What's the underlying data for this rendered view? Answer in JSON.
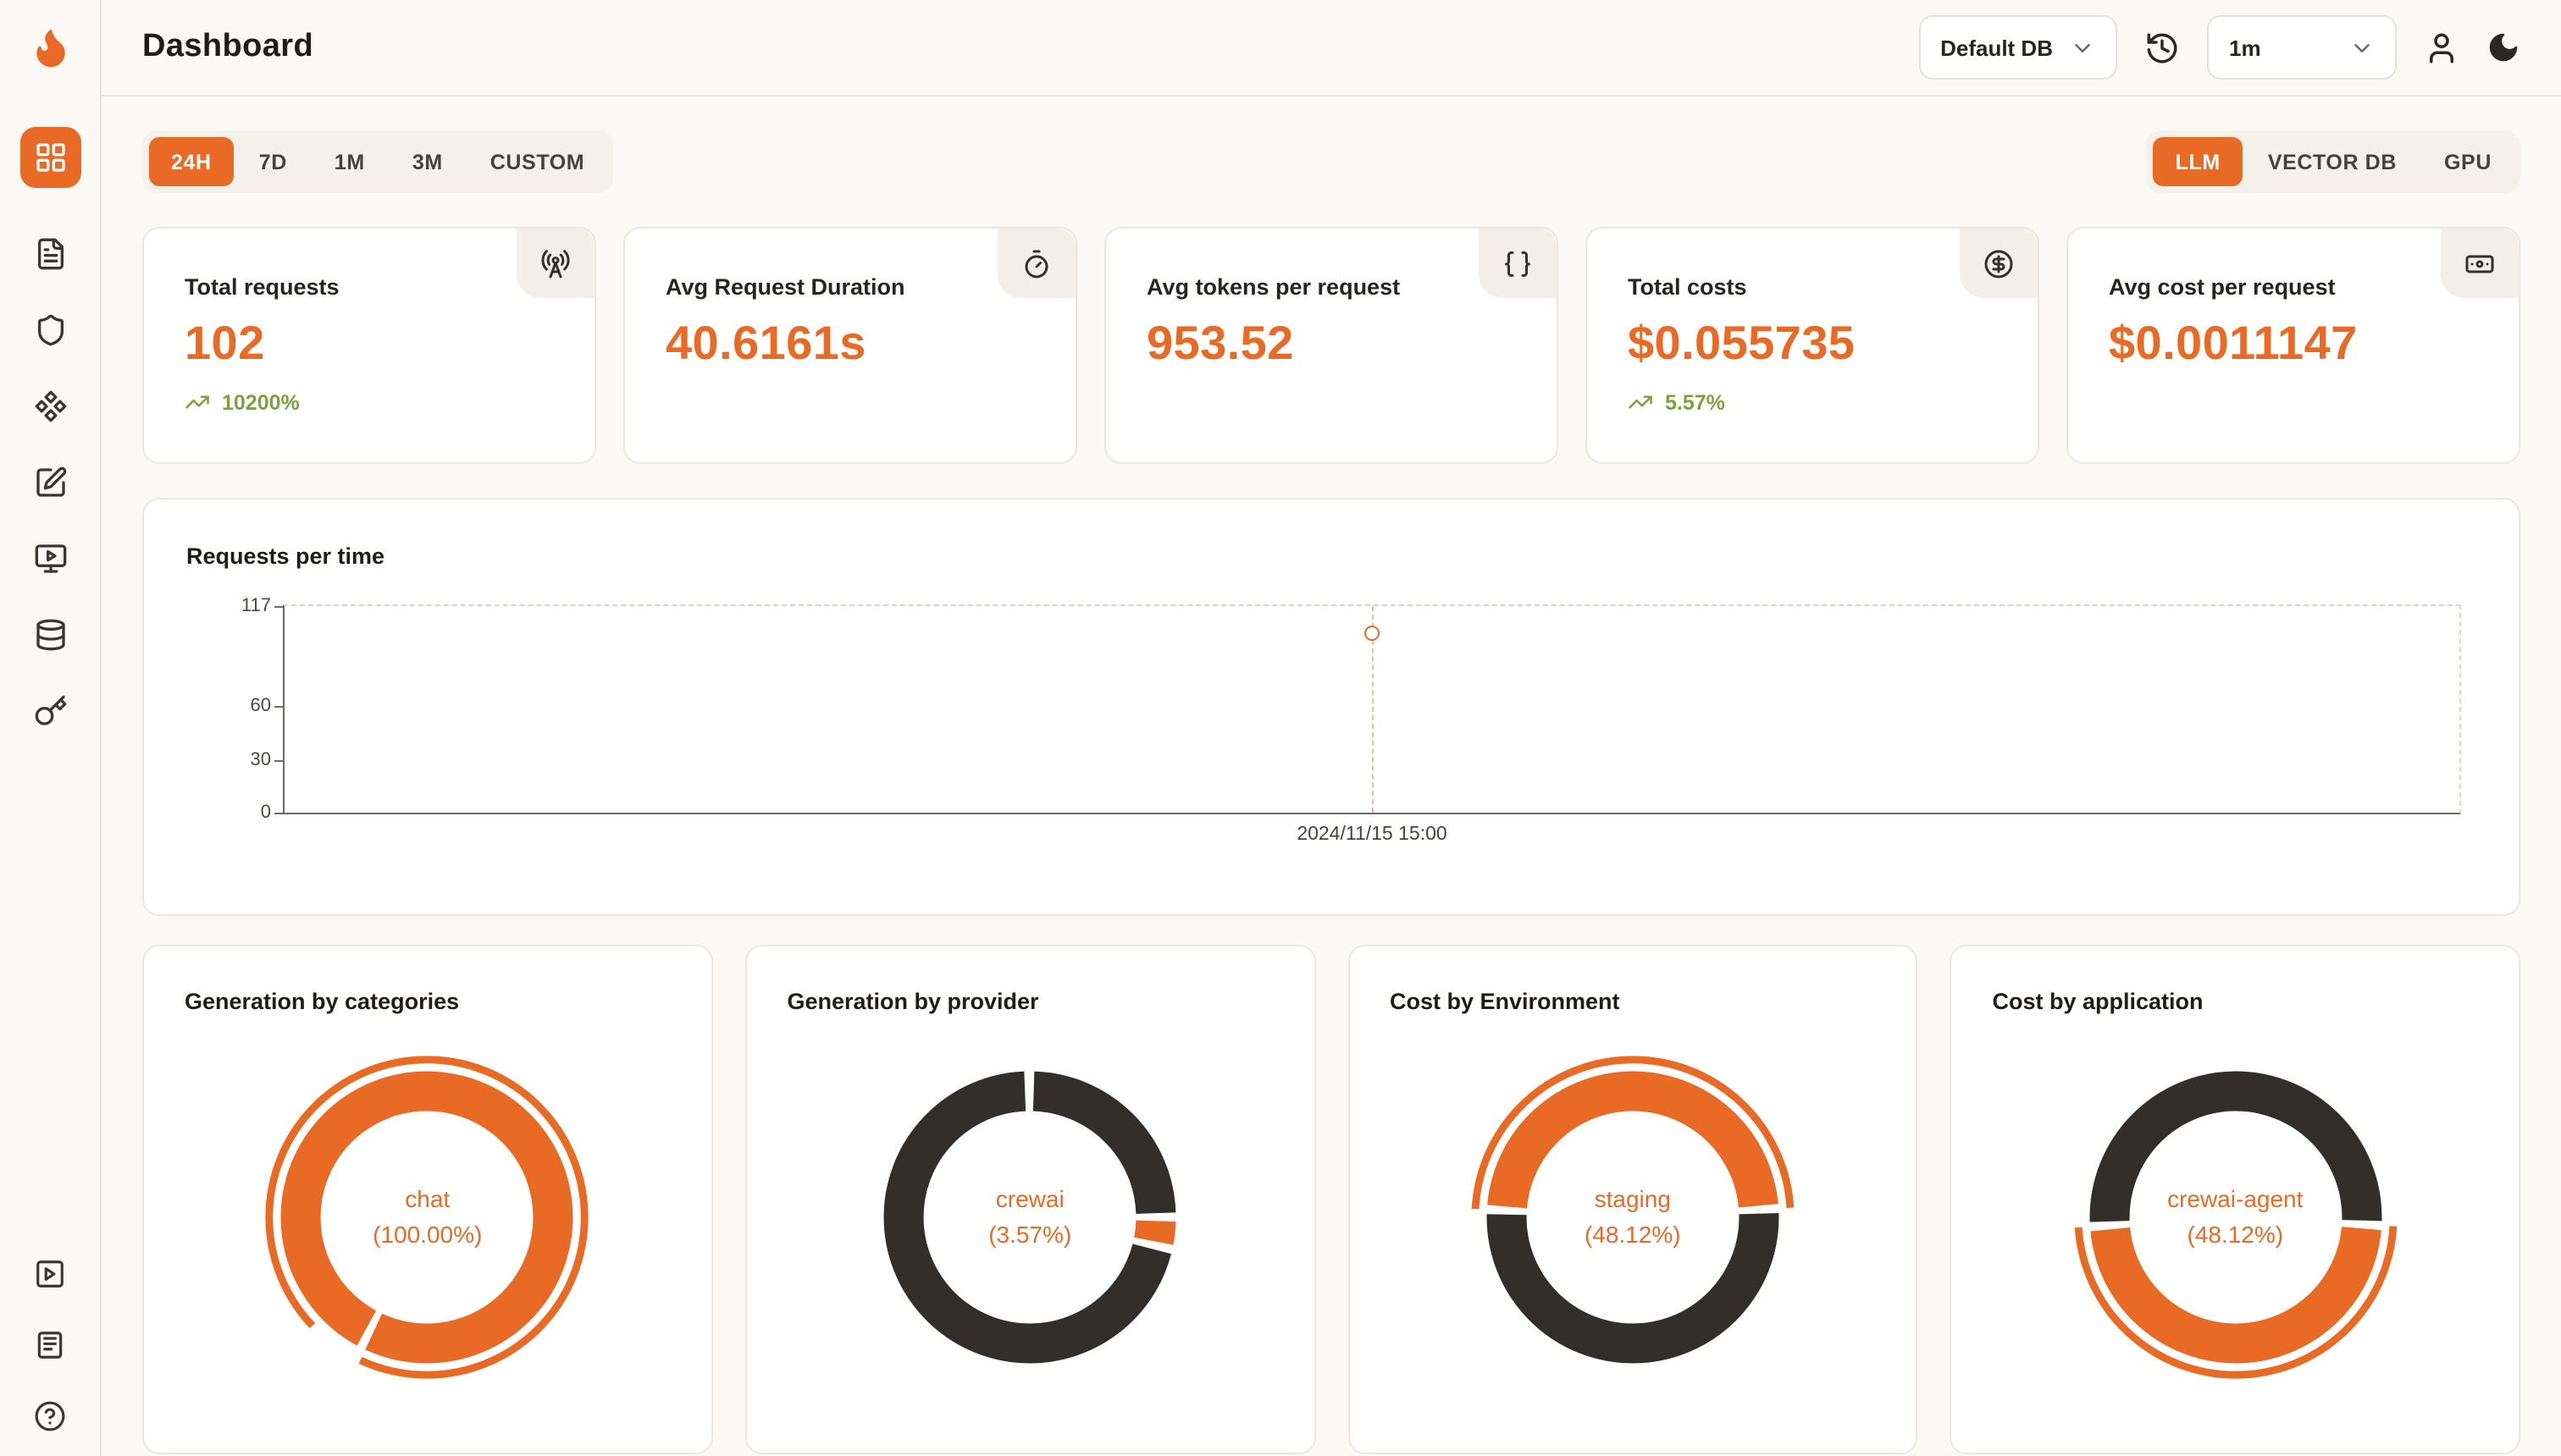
{
  "colors": {
    "accent": "#E86A24",
    "dark": "#322E29",
    "positive": "#7FA03F"
  },
  "header": {
    "title": "Dashboard",
    "db_select": {
      "value": "Default DB"
    },
    "interval_select": {
      "value": "1m"
    }
  },
  "sidebar": {
    "items": [
      "dashboard",
      "requests",
      "exceptions",
      "prompt-hub",
      "evaluations",
      "playground",
      "databases",
      "api-keys"
    ],
    "footer_items": [
      "getting-started",
      "documentation",
      "help"
    ]
  },
  "filters": {
    "time_ranges": [
      "24H",
      "7D",
      "1M",
      "3M",
      "CUSTOM"
    ],
    "active_time_range": "24H",
    "modes": [
      "LLM",
      "VECTOR DB",
      "GPU"
    ],
    "active_mode": "LLM"
  },
  "stats": [
    {
      "label": "Total requests",
      "value": "102",
      "delta": "10200%",
      "icon": "radio-tower"
    },
    {
      "label": "Avg Request Duration",
      "value": "40.6161s",
      "icon": "timer"
    },
    {
      "label": "Avg tokens per request",
      "value": "953.52",
      "icon": "braces"
    },
    {
      "label": "Total costs",
      "value": "$0.055735",
      "delta": "5.57%",
      "icon": "circle-dollar"
    },
    {
      "label": "Avg cost per request",
      "value": "$0.0011147",
      "icon": "banknote"
    }
  ],
  "chart_data": [
    {
      "type": "line",
      "title": "Requests per time",
      "x": [
        "2024/11/15 15:00"
      ],
      "series": [
        {
          "name": "Requests",
          "values": [
            102
          ]
        }
      ],
      "ylim": [
        0,
        117
      ],
      "y_ticks": [
        0,
        30,
        60,
        117
      ],
      "x_point_fraction": 0.5,
      "point_color": "#E86A24",
      "grid": "dashed-frame",
      "legend": "none"
    },
    {
      "type": "pie",
      "title": "Generation by categories",
      "center_label": {
        "line1": "chat",
        "line2": "(100.00%)"
      },
      "label_color": "#E86A24",
      "segments": [
        {
          "name": "chat",
          "value": 100.0,
          "color": "#E86A24",
          "start": 57.5
        }
      ],
      "outer_arc": {
        "start": 63,
        "length": 94,
        "color": "#E86A24"
      }
    },
    {
      "type": "pie",
      "title": "Generation by provider",
      "center_label": {
        "line1": "crewai",
        "line2": "(3.57%)"
      },
      "label_color": "#E86A24",
      "segments": [
        {
          "name": "other",
          "value": 25.0,
          "color": "#322E29",
          "start": 0
        },
        {
          "name": "crewai",
          "value": 3.57,
          "color": "#E86A24",
          "start": 25.0
        },
        {
          "name": "other",
          "value": 71.43,
          "color": "#322E29",
          "start": 28.57
        }
      ],
      "outer_arc": null
    },
    {
      "type": "pie",
      "title": "Cost by Environment",
      "center_label": {
        "line1": "staging",
        "line2": "(48.12%)"
      },
      "label_color": "#E86A24",
      "segments": [
        {
          "name": "staging",
          "value": 48.12,
          "color": "#E86A24",
          "start": 75.94
        },
        {
          "name": "other",
          "value": 51.88,
          "color": "#322E29",
          "start": 24.06
        }
      ],
      "outer_arc": {
        "start": 75.94,
        "length": 48.12,
        "color": "#E86A24"
      }
    },
    {
      "type": "pie",
      "title": "Cost by application",
      "center_label": {
        "line1": "crewai-agent",
        "line2": "(48.12%)"
      },
      "label_color": "#E86A24",
      "segments": [
        {
          "name": "crewai-agent",
          "value": 48.12,
          "color": "#E86A24",
          "start": 25.94
        },
        {
          "name": "other",
          "value": 51.88,
          "color": "#322E29",
          "start": 74.06
        }
      ],
      "outer_arc": {
        "start": 25.94,
        "length": 48.12,
        "color": "#E86A24"
      }
    }
  ]
}
